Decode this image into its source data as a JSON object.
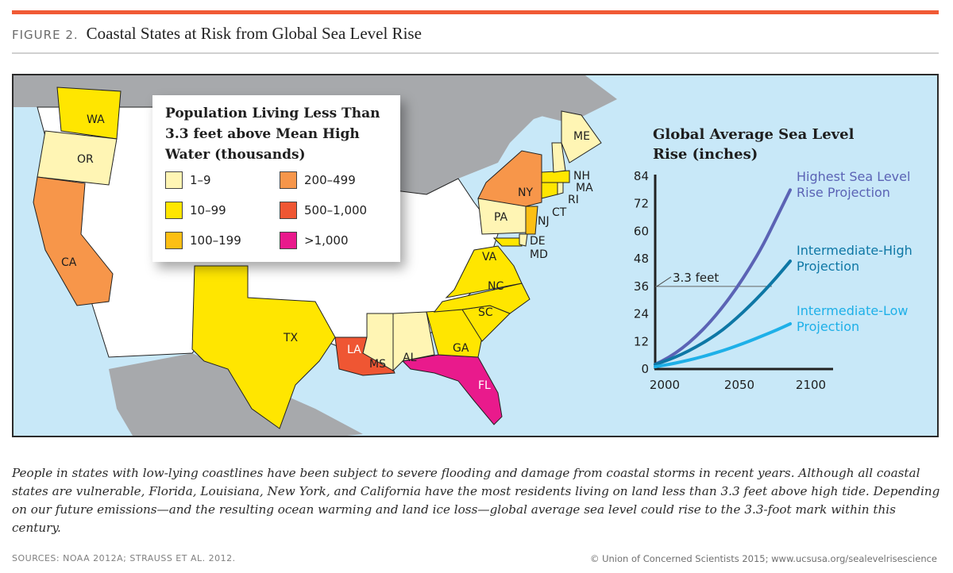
{
  "header": {
    "figure_number": "FIGURE 2.",
    "title": "Coastal States at Risk from Global Sea Level Rise",
    "accent_color": "#f05a35"
  },
  "map": {
    "ocean_color": "#c8e8f8",
    "foreign_land_color": "#a7a9ac",
    "non_coastal_color": "#ffffff",
    "legend": {
      "title": "Population Living Less Than 3.3 feet above Mean High Water (thousands)",
      "items": [
        {
          "label": "1–9",
          "color": "#fff5b4"
        },
        {
          "label": "10–99",
          "color": "#ffe600"
        },
        {
          "label": "100–199",
          "color": "#fcbf14"
        },
        {
          "label": "200–499",
          "color": "#f7964a"
        },
        {
          "label": "500–1,000",
          "color": "#ef5633"
        },
        {
          "label": ">1,000",
          "color": "#e91a8c"
        }
      ]
    },
    "states": [
      {
        "abbr": "WA",
        "category": "10–99"
      },
      {
        "abbr": "OR",
        "category": "1–9"
      },
      {
        "abbr": "CA",
        "category": "200–499"
      },
      {
        "abbr": "TX",
        "category": "10–99"
      },
      {
        "abbr": "LA",
        "category": "500–1,000"
      },
      {
        "abbr": "MS",
        "category": "1–9"
      },
      {
        "abbr": "AL",
        "category": "1–9"
      },
      {
        "abbr": "FL",
        "category": ">1,000"
      },
      {
        "abbr": "GA",
        "category": "10–99"
      },
      {
        "abbr": "SC",
        "category": "10–99"
      },
      {
        "abbr": "NC",
        "category": "10–99"
      },
      {
        "abbr": "VA",
        "category": "10–99"
      },
      {
        "abbr": "MD",
        "category": "10–99"
      },
      {
        "abbr": "DE",
        "category": "1–9"
      },
      {
        "abbr": "NJ",
        "category": "100–199"
      },
      {
        "abbr": "PA",
        "category": "1–9"
      },
      {
        "abbr": "NY",
        "category": "200–499"
      },
      {
        "abbr": "CT",
        "category": "10–99"
      },
      {
        "abbr": "RI",
        "category": "1–9"
      },
      {
        "abbr": "MA",
        "category": "10–99"
      },
      {
        "abbr": "NH",
        "category": "1–9"
      },
      {
        "abbr": "ME",
        "category": "1–9"
      }
    ]
  },
  "chart_data": {
    "type": "line",
    "title": "Global Average Sea Level Rise (inches)",
    "xlabel": "",
    "ylabel": "inches",
    "xlim": [
      2000,
      2100
    ],
    "ylim": [
      0,
      84
    ],
    "x_ticks": [
      "2000",
      "2050",
      "2100"
    ],
    "y_ticks": [
      "0",
      "12",
      "24",
      "36",
      "48",
      "60",
      "72",
      "84"
    ],
    "grid": false,
    "reference_line": {
      "value": 36,
      "label": "3.3 feet"
    },
    "x": [
      2000,
      2010,
      2020,
      2030,
      2040,
      2050,
      2060,
      2070,
      2080,
      2090,
      2100
    ],
    "series": [
      {
        "name": "Highest Sea Level Rise Projection",
        "label_lines": [
          "Highest Sea Level",
          "Rise Projection"
        ],
        "color": "#5b63b5",
        "values": [
          2,
          5,
          9,
          14,
          20,
          27,
          35,
          44,
          54,
          66,
          78
        ]
      },
      {
        "name": "Intermediate-High Projection",
        "label_lines": [
          "Intermediate-High",
          "Projection"
        ],
        "color": "#0e77a5",
        "values": [
          2,
          4,
          6.5,
          9.5,
          13,
          17,
          22,
          27.5,
          33.5,
          40,
          47
        ]
      },
      {
        "name": "Intermediate-Low Projection",
        "label_lines": [
          "Intermediate-Low",
          "Projection"
        ],
        "color": "#1eb0e8",
        "values": [
          1,
          2,
          3.2,
          4.6,
          6.2,
          8,
          10,
          12.2,
          14.6,
          17,
          19.7
        ]
      }
    ]
  },
  "caption": "People in states with low-lying coastlines have been subject to severe flooding and damage from coastal storms in recent years. Although all coastal states are vulnerable, Florida, Louisiana, New York, and California have the most residents living on land less than 3.3 feet above high tide. Depending on our future emissions—and the resulting ocean warming and land ice loss—global average sea level could rise to the 3.3-foot mark within this century.",
  "footer": {
    "sources": "SOURCES: NOAA 2012A; STRAUSS ET AL. 2012.",
    "credit": "© Union of Concerned Scientists 2015; www.ucsusa.org/sealevelrisescience"
  }
}
